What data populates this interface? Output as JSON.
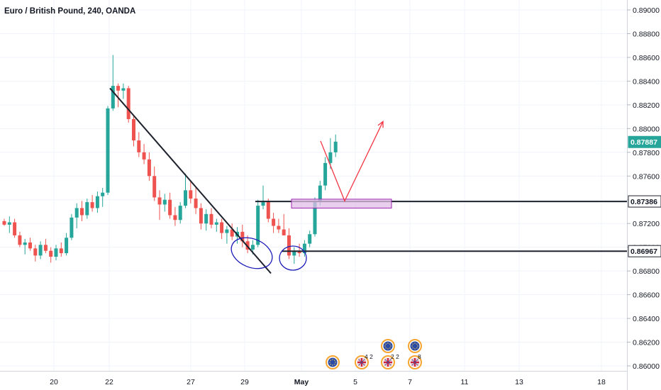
{
  "chart_data": {
    "type": "candlestick",
    "title": "Euro / British Pound, 240, OANDA",
    "y_axis": {
      "ticks": [
        "0.89000",
        "0.88800",
        "0.88600",
        "0.88400",
        "0.88200",
        "0.88000",
        "0.87800",
        "0.87600",
        "0.87400",
        "0.87200",
        "0.87000",
        "0.86800",
        "0.86600",
        "0.86400",
        "0.86200",
        "0.86000"
      ],
      "range": [
        0.8596,
        0.8908
      ]
    },
    "x_axis": {
      "labels": [
        "20",
        "22",
        "27",
        "29",
        "May",
        "5",
        "7",
        "11",
        "13",
        "18"
      ],
      "month_label": "May"
    },
    "price_tags": [
      {
        "label": "0.87887",
        "value": 0.87887,
        "color": "#26a69a",
        "text_color": "#ffffff"
      },
      {
        "label": "0.87386",
        "value": 0.87386,
        "color": "#ffffff",
        "text_color": "#131722"
      },
      {
        "label": "0.86967",
        "value": 0.86967,
        "color": "#ffffff",
        "text_color": "#131722"
      }
    ],
    "colors": {
      "up": "#26a69a",
      "down": "#ef5350",
      "trendline": "#1e222d",
      "projection": "#f23645",
      "ellipse": "#1a1ab8",
      "zone_fill": "#e1bee7",
      "zone_stroke": "#9c27b0"
    },
    "drawings": {
      "trendline": {
        "from": [
          0.8834
        ],
        "to": [
          0.8678
        ]
      },
      "horizontal_lines": [
        0.87386,
        0.86967
      ],
      "zone": {
        "high": 0.87405,
        "low": 0.8733
      },
      "projection_arrow": [
        0.87895,
        0.8739,
        0.8806
      ]
    },
    "events": [
      {
        "name": "EU-event",
        "count": ""
      },
      {
        "name": "UK-event",
        "count": "4 2"
      },
      {
        "name": "EU-event",
        "count": ""
      },
      {
        "name": "UK-event",
        "count": "2 2"
      },
      {
        "name": "EU-event",
        "count": ""
      },
      {
        "name": "UK-event",
        "count": "8"
      }
    ],
    "candles": [
      [
        0.8722,
        0.8724,
        0.8718,
        0.8719
      ],
      [
        0.8719,
        0.8726,
        0.8712,
        0.8721
      ],
      [
        0.8721,
        0.8724,
        0.8708,
        0.871
      ],
      [
        0.871,
        0.8713,
        0.87,
        0.8702
      ],
      [
        0.8702,
        0.8707,
        0.8694,
        0.8704
      ],
      [
        0.8704,
        0.8708,
        0.8697,
        0.8699
      ],
      [
        0.8699,
        0.8702,
        0.8688,
        0.8693
      ],
      [
        0.8693,
        0.8705,
        0.869,
        0.8702
      ],
      [
        0.8702,
        0.8707,
        0.8695,
        0.8697
      ],
      [
        0.8697,
        0.87,
        0.8687,
        0.8692
      ],
      [
        0.8692,
        0.8702,
        0.8689,
        0.8699
      ],
      [
        0.8699,
        0.8704,
        0.8692,
        0.8695
      ],
      [
        0.8695,
        0.8712,
        0.8693,
        0.8708
      ],
      [
        0.8708,
        0.8728,
        0.8706,
        0.8725
      ],
      [
        0.8725,
        0.8737,
        0.8716,
        0.8733
      ],
      [
        0.8733,
        0.8739,
        0.8722,
        0.8727
      ],
      [
        0.8727,
        0.8741,
        0.8724,
        0.8738
      ],
      [
        0.8738,
        0.8744,
        0.873,
        0.8733
      ],
      [
        0.8733,
        0.8747,
        0.8729,
        0.8743
      ],
      [
        0.8743,
        0.875,
        0.8734,
        0.8746
      ],
      [
        0.8746,
        0.8819,
        0.8744,
        0.8817
      ],
      [
        0.8817,
        0.8862,
        0.8815,
        0.8836
      ],
      [
        0.8836,
        0.8838,
        0.8818,
        0.8832
      ],
      [
        0.8832,
        0.8838,
        0.8825,
        0.8834
      ],
      [
        0.8834,
        0.8836,
        0.8805,
        0.8808
      ],
      [
        0.8808,
        0.8811,
        0.8785,
        0.879
      ],
      [
        0.879,
        0.8797,
        0.8776,
        0.878
      ],
      [
        0.878,
        0.8787,
        0.877,
        0.8774
      ],
      [
        0.8774,
        0.878,
        0.8756,
        0.876
      ],
      [
        0.876,
        0.8768,
        0.8739,
        0.8742
      ],
      [
        0.8742,
        0.8748,
        0.8723,
        0.8736
      ],
      [
        0.8736,
        0.8745,
        0.873,
        0.874
      ],
      [
        0.874,
        0.8746,
        0.8724,
        0.8727
      ],
      [
        0.8727,
        0.8734,
        0.8718,
        0.8723
      ],
      [
        0.8723,
        0.8738,
        0.872,
        0.8735
      ],
      [
        0.8735,
        0.8762,
        0.8733,
        0.8748
      ],
      [
        0.8748,
        0.8756,
        0.8737,
        0.8741
      ],
      [
        0.8741,
        0.875,
        0.8728,
        0.8733
      ],
      [
        0.8733,
        0.8737,
        0.8715,
        0.872
      ],
      [
        0.872,
        0.8732,
        0.8714,
        0.8728
      ],
      [
        0.8728,
        0.8733,
        0.8716,
        0.8719
      ],
      [
        0.8719,
        0.8724,
        0.8713,
        0.8721
      ],
      [
        0.8721,
        0.8724,
        0.8707,
        0.8712
      ],
      [
        0.8712,
        0.8718,
        0.8703,
        0.8715
      ],
      [
        0.8715,
        0.872,
        0.8706,
        0.8709
      ],
      [
        0.8709,
        0.8717,
        0.8703,
        0.8713
      ],
      [
        0.8713,
        0.8719,
        0.87,
        0.8705
      ],
      [
        0.8705,
        0.871,
        0.8695,
        0.8698
      ],
      [
        0.8698,
        0.8706,
        0.8694,
        0.8702
      ],
      [
        0.8702,
        0.874,
        0.87,
        0.8735
      ],
      [
        0.8735,
        0.8752,
        0.8732,
        0.8738
      ],
      [
        0.8738,
        0.8741,
        0.8721,
        0.8724
      ],
      [
        0.8724,
        0.8729,
        0.8712,
        0.8718
      ],
      [
        0.8718,
        0.8724,
        0.8712,
        0.8715
      ],
      [
        0.8715,
        0.8728,
        0.871,
        0.871
      ],
      [
        0.871,
        0.8716,
        0.869,
        0.8693
      ],
      [
        0.8693,
        0.87,
        0.8686,
        0.8697
      ],
      [
        0.8697,
        0.8703,
        0.8692,
        0.8695
      ],
      [
        0.8695,
        0.8706,
        0.8692,
        0.8703
      ],
      [
        0.8703,
        0.8714,
        0.87,
        0.8711
      ],
      [
        0.8711,
        0.8742,
        0.8709,
        0.8738
      ],
      [
        0.8738,
        0.8756,
        0.8735,
        0.8752
      ],
      [
        0.8752,
        0.8776,
        0.8748,
        0.8771
      ],
      [
        0.8771,
        0.8792,
        0.8766,
        0.878
      ],
      [
        0.878,
        0.8795,
        0.8776,
        0.8789
      ]
    ]
  }
}
